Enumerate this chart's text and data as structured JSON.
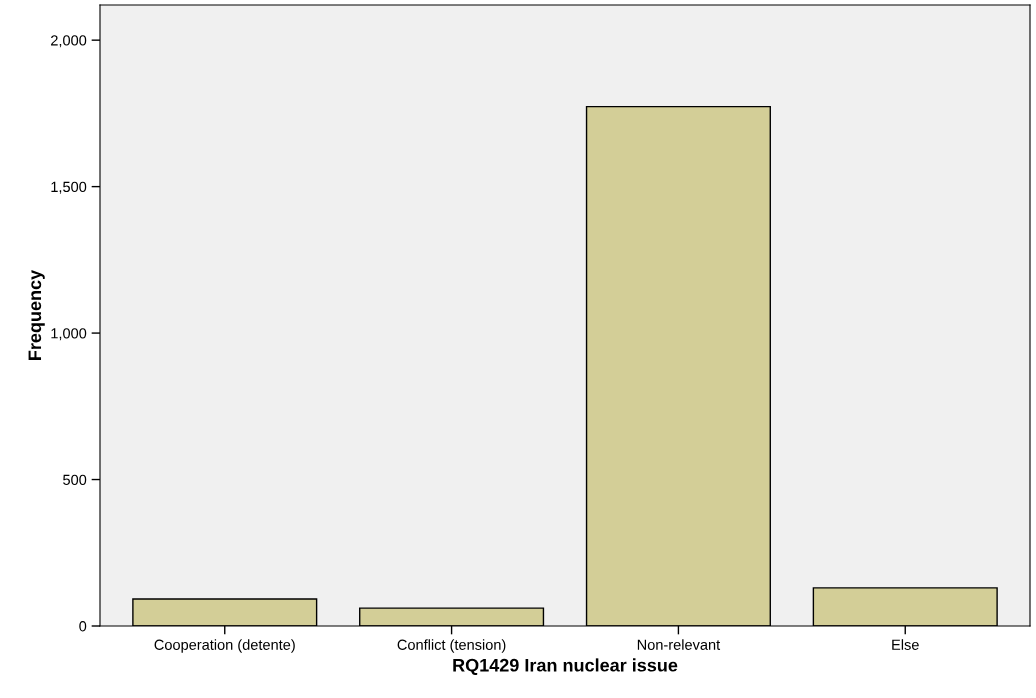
{
  "chart_data": {
    "type": "bar",
    "xlabel": "RQ1429 Iran nuclear issue",
    "ylabel": "Frequency",
    "categories": [
      "Cooperation (detente)",
      "Conflict (tension)",
      "Non-relevant",
      "Else"
    ],
    "values": [
      92,
      61,
      1773,
      130
    ],
    "color": "#d3ce97",
    "ylim": [
      0,
      2120
    ],
    "yticks": [
      0,
      {
        "value": 500,
        "label": "500"
      },
      {
        "value": 1000,
        "label": "1,000"
      },
      {
        "value": 1500,
        "label": "1,500"
      },
      {
        "value": 2000,
        "label": "2,000"
      }
    ],
    "grid": false
  }
}
